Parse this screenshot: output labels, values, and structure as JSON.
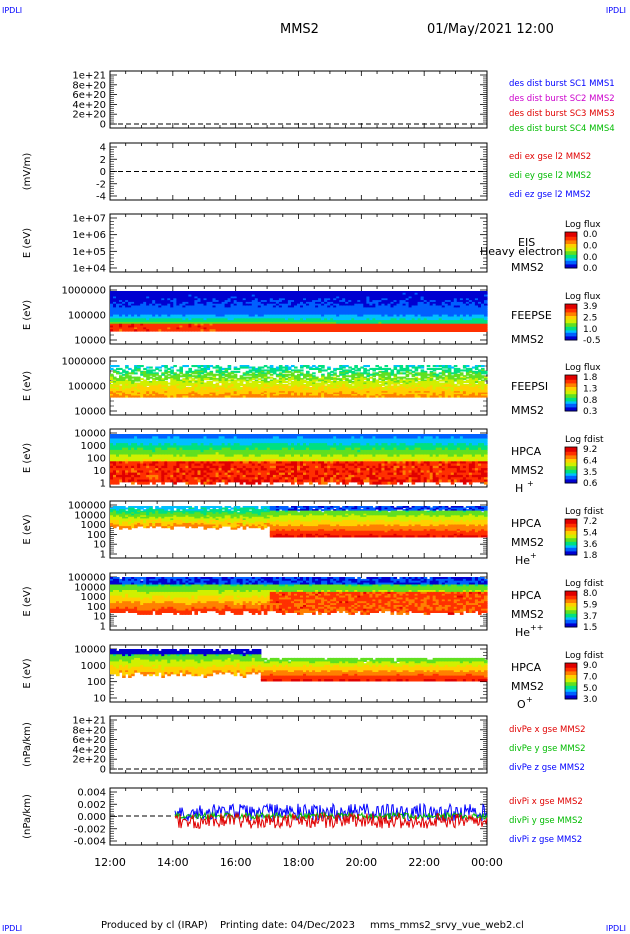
{
  "header": {
    "corner_tl": "IPDLI",
    "corner_tr": "IPDLI",
    "corner_bl": "IPDLI",
    "corner_br": "IPDLI",
    "spacecraft": "MMS2",
    "datetime": "01/May/2021 12:00"
  },
  "footer": {
    "produced_by": "Produced by cl (IRAP)",
    "printing_date": "Printing date: 04/Dec/2023",
    "filename": "mms_mms2_srvy_vue_web2.cl"
  },
  "colors": {
    "black": "#000000",
    "blue": "#0000ff",
    "red": "#e00000",
    "green": "#00bb00",
    "magenta": "#cc00cc",
    "spectrogram": [
      "#0000d0",
      "#0060ff",
      "#00c0ff",
      "#00e080",
      "#60e020",
      "#d0f000",
      "#ffd000",
      "#ff8000",
      "#ff3000",
      "#e00000"
    ]
  },
  "chart_data": [
    {
      "type": "line",
      "id": "desdist",
      "y_ticks": [
        "1e+21",
        "8e+20",
        "6e+20",
        "4e+20",
        "2e+20",
        "0"
      ],
      "legend": [
        {
          "text": "des dist burst SC1 MMS1",
          "color": "#0000ff"
        },
        {
          "text": "des dist burst SC2 MMS2",
          "color": "#cc00cc"
        },
        {
          "text": "des dist burst SC3 MMS3",
          "color": "#e00000"
        },
        {
          "text": "des dist burst SC4 MMS4",
          "color": "#00bb00"
        }
      ]
    },
    {
      "type": "line",
      "id": "edi",
      "ylabel": "(mV/m)",
      "y_ticks": [
        "4",
        "2",
        "0",
        "-2",
        "-4"
      ],
      "legend": [
        {
          "text": "edi ex gse l2 MMS2",
          "color": "#e00000"
        },
        {
          "text": "edi ey gse l2 MMS2",
          "color": "#00bb00"
        },
        {
          "text": "edi ez gse l2 MMS2",
          "color": "#0000ff"
        }
      ]
    },
    {
      "type": "heatmap",
      "id": "eis",
      "ylabel": "E (eV)",
      "y_ticks": [
        "1e+07",
        "1e+06",
        "1e+05",
        "1e+04"
      ],
      "instrument": "EIS",
      "spacecraft": "MMS2",
      "overlay_text": "Heavy electron to",
      "colorbar_title": "Log flux",
      "colorbar_ticks": [
        "0.0",
        "0.0",
        "0.0",
        "0.0"
      ]
    },
    {
      "type": "heatmap",
      "id": "feepse",
      "ylabel": "E (eV)",
      "y_ticks": [
        "1000000",
        "100000",
        "10000"
      ],
      "instrument": "FEEPSE",
      "spacecraft": "MMS2",
      "colorbar_title": "Log flux",
      "colorbar_ticks": [
        "3.9",
        "2.5",
        "1.0",
        "-0.5"
      ]
    },
    {
      "type": "heatmap",
      "id": "feepsi",
      "ylabel": "E (eV)",
      "y_ticks": [
        "1000000",
        "100000",
        "10000"
      ],
      "instrument": "FEEPSI",
      "spacecraft": "MMS2",
      "colorbar_title": "Log flux",
      "colorbar_ticks": [
        "1.8",
        "1.3",
        "0.8",
        "0.3"
      ]
    },
    {
      "type": "heatmap",
      "id": "hpca_h",
      "ylabel": "E (eV)",
      "y_ticks": [
        "10000",
        "1000",
        "100",
        "10",
        "1"
      ],
      "instrument": "HPCA",
      "spacecraft": "MMS2",
      "species": "H",
      "species_sup": "+",
      "colorbar_title": "Log fdist",
      "colorbar_ticks": [
        "9.2",
        "6.4",
        "3.5",
        "0.6"
      ]
    },
    {
      "type": "heatmap",
      "id": "hpca_he1",
      "ylabel": "E (eV)",
      "y_ticks": [
        "100000",
        "10000",
        "1000",
        "100",
        "10",
        "1"
      ],
      "instrument": "HPCA",
      "spacecraft": "MMS2",
      "species": "He",
      "species_sup": "+",
      "colorbar_title": "Log fdist",
      "colorbar_ticks": [
        "7.2",
        "5.4",
        "3.6",
        "1.8"
      ]
    },
    {
      "type": "heatmap",
      "id": "hpca_he2",
      "ylabel": "E (eV)",
      "y_ticks": [
        "100000",
        "10000",
        "1000",
        "100",
        "10",
        "1"
      ],
      "instrument": "HPCA",
      "spacecraft": "MMS2",
      "species": "He",
      "species_sup": "++",
      "colorbar_title": "Log fdist",
      "colorbar_ticks": [
        "8.0",
        "5.9",
        "3.7",
        "1.5"
      ]
    },
    {
      "type": "heatmap",
      "id": "hpca_o",
      "ylabel": "E (eV)",
      "y_ticks": [
        "10000",
        "1000",
        "100",
        "10"
      ],
      "instrument": "HPCA",
      "spacecraft": "MMS2",
      "species": "O",
      "species_sup": "+",
      "colorbar_title": "Log fdist",
      "colorbar_ticks": [
        "9.0",
        "7.0",
        "5.0",
        "3.0"
      ]
    },
    {
      "type": "line",
      "id": "divpe",
      "ylabel": "(nPa/km)",
      "y_ticks": [
        "1e+21",
        "8e+20",
        "6e+20",
        "4e+20",
        "2e+20",
        "0"
      ],
      "legend": [
        {
          "text": "divPe x gse MMS2",
          "color": "#e00000"
        },
        {
          "text": "divPe y gse MMS2",
          "color": "#00bb00"
        },
        {
          "text": "divPe z gse MMS2",
          "color": "#0000ff"
        }
      ]
    },
    {
      "type": "line",
      "id": "divpi",
      "ylabel": "(nPa/km)",
      "y_ticks": [
        "0.004",
        "0.002",
        "0.000",
        "-0.002",
        "-0.004"
      ],
      "ylim": [
        -0.005,
        0.005
      ],
      "data_start": "14:00",
      "legend": [
        {
          "text": "divPi x gse MMS2",
          "color": "#e00000"
        },
        {
          "text": "divPi y gse MMS2",
          "color": "#00bb00"
        },
        {
          "text": "divPi z gse MMS2",
          "color": "#0000ff"
        }
      ]
    }
  ],
  "x_axis": {
    "ticks": [
      "12:00",
      "14:00",
      "16:00",
      "18:00",
      "20:00",
      "22:00",
      "00:00"
    ]
  }
}
